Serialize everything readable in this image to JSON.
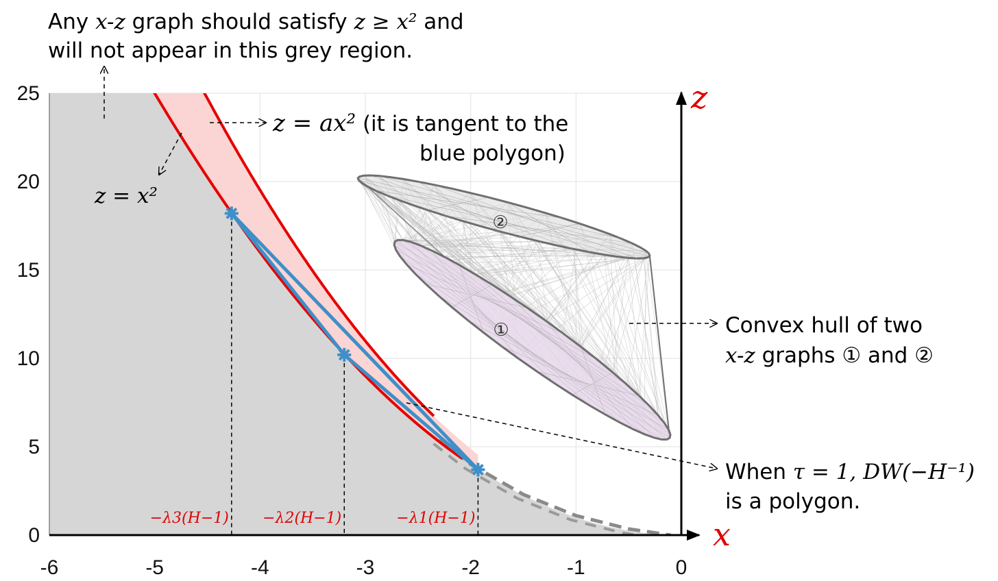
{
  "chart_data": {
    "type": "line",
    "x_ticks": [
      "-6",
      "-5",
      "-4",
      "-3",
      "-2",
      "-1",
      "0"
    ],
    "y_ticks": [
      "0",
      "5",
      "10",
      "15",
      "20",
      "25"
    ],
    "xlim": [
      -6,
      0
    ],
    "ylim": [
      0,
      25
    ],
    "grid": true,
    "axis_x_label": "x",
    "axis_z_label": "z",
    "parabola_a": 1.22,
    "eigen_points": [
      {
        "x": -4.27,
        "z": 18.2,
        "label": "−λ3(H−1)"
      },
      {
        "x": -3.2,
        "z": 10.2,
        "label": "−λ2(H−1)"
      },
      {
        "x": -1.93,
        "z": 3.7,
        "label": "−λ1(H−1)"
      }
    ],
    "dashed_curve": [
      {
        "x": -2.3,
        "z": 5.4
      },
      {
        "x": -2.0,
        "z": 4.0
      },
      {
        "x": -1.5,
        "z": 2.3
      },
      {
        "x": -1.0,
        "z": 1.1
      },
      {
        "x": -0.5,
        "z": 0.35
      },
      {
        "x": -0.1,
        "z": 0.0
      }
    ],
    "ellipse_1": {
      "label": "①",
      "top_x": -2.72,
      "top_z": 16.6,
      "bottom_x": -0.11,
      "bottom_z": 5.5
    },
    "ellipse_2": {
      "label": "②",
      "left_x": -3.07,
      "left_z": 20.2,
      "right_x": -0.3,
      "right_z": 15.8
    },
    "colors": {
      "grey_region": "#d6d6d6",
      "band_fill": "#fbd5d3",
      "parabola": "#e60000",
      "polygon": "#3f8fc8",
      "hull": "#7a7a7a",
      "ellipse_fill": "#e6d7ea"
    },
    "annotations": {
      "grey_region_line1_a": "Any ",
      "grey_region_line1_math1": "x-z",
      "grey_region_line1_b": " graph should satisfy ",
      "grey_region_line1_math2": "z ≥ x²",
      "grey_region_line1_c": " and",
      "grey_region_line2": "will not appear in this grey region.",
      "ax2_math": "z = ax²",
      "ax2_text_line1": " (it is tangent to the",
      "ax2_text_line2": "blue polygon)",
      "x2_math": "z = x²",
      "hull_line1": "Convex hull of two",
      "hull_line2_math": "x-z",
      "hull_line2_text": " graphs ① and ②",
      "poly_line1_a": "When ",
      "poly_line1_math1": "τ = 1,",
      "poly_line1_math2": "DW(−H⁻¹)",
      "poly_line2": "is a polygon."
    }
  }
}
